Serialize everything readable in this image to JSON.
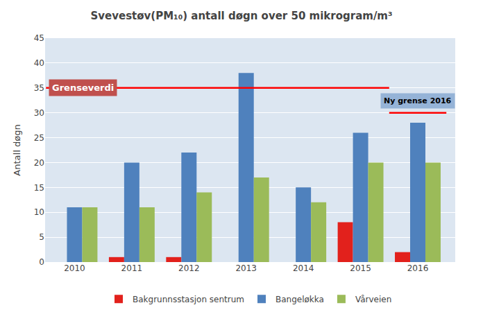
{
  "chart_data": {
    "type": "bar",
    "title": "Svevestøv(PM₁₀) antall døgn over 50 mikrogram/m³",
    "y_label": "Antall døgn",
    "categories": [
      "2010",
      "2011",
      "2012",
      "2013",
      "2014",
      "2015",
      "2016"
    ],
    "series": [
      {
        "name": "Bakgrunnsstasjon sentrum",
        "color": "#e2211c",
        "values": [
          0,
          1,
          1,
          0,
          0,
          8,
          2
        ]
      },
      {
        "name": "Bangeløkka",
        "color": "#4f81bd",
        "values": [
          11,
          20,
          22,
          38,
          15,
          26,
          28
        ]
      },
      {
        "name": "Vårveien",
        "color": "#9bbb59",
        "values": [
          11,
          11,
          14,
          17,
          12,
          20,
          20
        ]
      }
    ],
    "annotations": [
      {
        "text": "Grenseverdi",
        "y": 35,
        "x": [
          "2010",
          "2015"
        ],
        "color": "red"
      },
      {
        "text": "Ny grense 2016",
        "y": 30,
        "x": [
          "2016",
          "2016"
        ],
        "color": "red"
      }
    ],
    "ylim": [
      0,
      45
    ],
    "yticks": [
      0,
      5,
      10,
      15,
      20,
      25,
      30,
      35,
      40,
      45
    ],
    "grid": true,
    "legend": "bottom"
  }
}
